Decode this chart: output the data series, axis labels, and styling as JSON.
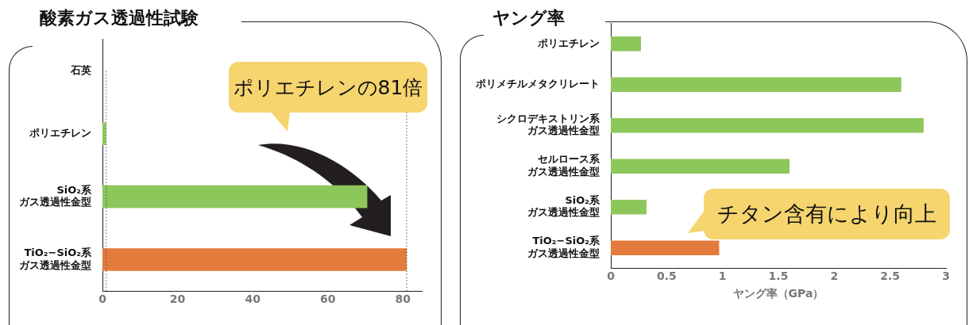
{
  "chart_data": [
    {
      "type": "bar",
      "orientation": "horizontal",
      "title": "酸素ガス透過性試験",
      "categories": [
        "石英",
        "ポリエチレン",
        "SiO₂系ガス透過性金型",
        "TiO₂−SiO₂系ガス透過性金型"
      ],
      "values": [
        0,
        1,
        70.5,
        81
      ],
      "colors": [
        "#8dc65a",
        "#8dc65a",
        "#8dc65a",
        "#e37b3c"
      ],
      "xlim": [
        0,
        85
      ],
      "xticks": [
        0,
        20,
        40,
        60,
        80
      ],
      "ref_lines": [
        {
          "axis": "x",
          "value": 1,
          "color": "#555555",
          "line_style": "dotted"
        },
        {
          "axis": "x",
          "value": 81,
          "color": "#555555",
          "line_style": "dotted"
        }
      ],
      "annotations": [
        "ポリエチレンの81倍"
      ]
    },
    {
      "type": "bar",
      "orientation": "horizontal",
      "title": "ヤング率",
      "xlabel": "ヤング率（GPa）",
      "categories": [
        "ポリエチレン",
        "ポリメチルメタクリレート",
        "シクロデキストリン系ガス透過性金型",
        "セルロース系ガス透過性金型",
        "SiO₂系ガス透過性金型",
        "TiO₂−SiO₂系ガス透過性金型"
      ],
      "values": [
        0.27,
        2.6,
        2.8,
        1.6,
        0.32,
        0.97
      ],
      "colors": [
        "#8dc65a",
        "#8dc65a",
        "#8dc65a",
        "#8dc65a",
        "#8dc65a",
        "#e37b3c"
      ],
      "xlim": [
        0,
        3
      ],
      "xticks": [
        0,
        0.5,
        1,
        1.5,
        2,
        2.5,
        3
      ],
      "annotations": [
        "チタン含有により向上"
      ]
    }
  ]
}
